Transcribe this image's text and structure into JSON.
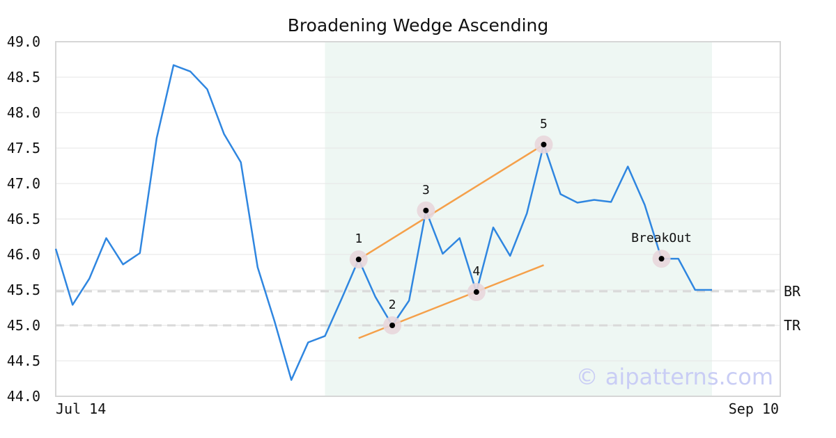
{
  "chart_data": {
    "type": "line",
    "title": "Broadening Wedge Ascending",
    "xlabel": "",
    "ylabel": "",
    "ylim": [
      44.0,
      49.0
    ],
    "yticks": [
      44.0,
      44.5,
      45.0,
      45.5,
      46.0,
      46.5,
      47.0,
      47.5,
      48.0,
      48.5,
      49.0
    ],
    "xtick_labels": [
      "Jul 14",
      "Sep 10"
    ],
    "grid": true,
    "series": [
      {
        "color": "#2f86e0",
        "values": [
          46.08,
          45.29,
          45.66,
          46.23,
          45.86,
          46.02,
          47.64,
          48.67,
          48.58,
          48.33,
          47.7,
          47.3,
          45.82,
          45.06,
          44.23,
          44.76,
          44.85,
          45.38,
          45.93,
          45.4,
          45.0,
          45.35,
          46.62,
          46.01,
          46.23,
          45.47,
          46.38,
          45.98,
          46.58,
          47.55,
          46.85,
          46.73,
          46.77,
          46.74,
          47.24,
          46.7,
          45.94,
          45.94,
          45.5,
          45.5
        ]
      }
    ],
    "shaded_region": {
      "from_index": 16,
      "to_index": 39,
      "color": "#eef7f3"
    },
    "reference_lines": [
      {
        "label": "BR",
        "value": 45.48
      },
      {
        "label": "TR",
        "value": 45.0
      }
    ],
    "trend_lines": [
      {
        "color": "#f5a04a",
        "from": {
          "index": 18,
          "value": 45.93
        },
        "to": {
          "index": 29,
          "value": 47.55
        }
      },
      {
        "color": "#f5a04a",
        "from": {
          "index": 18,
          "value": 44.82
        },
        "to": {
          "index": 29,
          "value": 45.85
        }
      }
    ],
    "points": [
      {
        "label": "1",
        "index": 18,
        "value": 45.93
      },
      {
        "label": "2",
        "index": 20,
        "value": 45.0
      },
      {
        "label": "3",
        "index": 22,
        "value": 46.62
      },
      {
        "label": "4",
        "index": 25,
        "value": 45.47
      },
      {
        "label": "5",
        "index": 29,
        "value": 47.55
      },
      {
        "label": "BreakOut",
        "index": 36,
        "value": 45.94
      }
    ],
    "watermark": "© aipatterns.com"
  }
}
